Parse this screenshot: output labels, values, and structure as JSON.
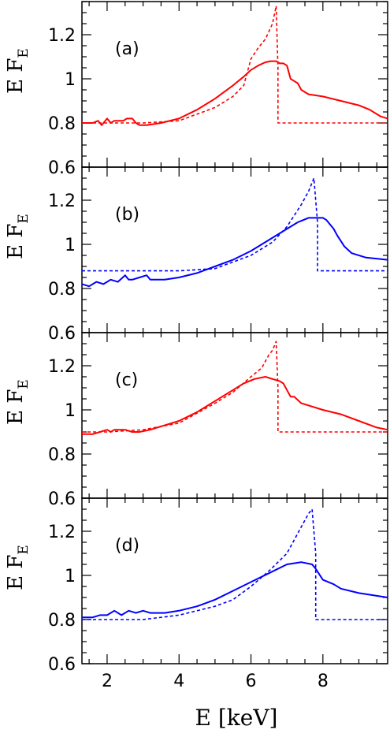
{
  "chart_data": [
    {
      "type": "line",
      "panel": "(a)",
      "xlabel": "E [keV]",
      "ylabel": "E F",
      "ylabel_sub": "E",
      "xlim": [
        1.3,
        9.8
      ],
      "ylim": [
        0.6,
        1.35
      ],
      "xticks": [
        2,
        4,
        6,
        8
      ],
      "yticks": [
        0.6,
        0.8,
        1,
        1.2
      ],
      "ytick_labels": [
        "0.6",
        "0.8",
        "1",
        "1.2"
      ],
      "series": [
        {
          "style": "solid",
          "color": "#ff0000",
          "x": [
            1.3,
            1.6,
            1.75,
            1.85,
            2.0,
            2.1,
            2.2,
            2.3,
            2.45,
            2.55,
            2.7,
            2.8,
            2.9,
            3.1,
            3.5,
            4.0,
            4.5,
            5.0,
            5.5,
            5.8,
            6.0,
            6.2,
            6.4,
            6.55,
            6.7,
            6.8,
            6.9,
            7.0,
            7.1,
            7.2,
            7.3,
            7.4,
            7.6,
            8.0,
            8.5,
            9.0,
            9.3,
            9.6,
            9.8
          ],
          "y": [
            0.8,
            0.8,
            0.81,
            0.79,
            0.82,
            0.8,
            0.81,
            0.81,
            0.81,
            0.82,
            0.82,
            0.8,
            0.79,
            0.79,
            0.8,
            0.82,
            0.86,
            0.91,
            0.97,
            1.01,
            1.04,
            1.06,
            1.075,
            1.08,
            1.08,
            1.07,
            1.07,
            1.06,
            1.0,
            0.99,
            0.98,
            0.95,
            0.93,
            0.92,
            0.9,
            0.88,
            0.86,
            0.83,
            0.82
          ]
        },
        {
          "style": "dashed",
          "color": "#ff0000",
          "x": [
            1.3,
            2.0,
            3.0,
            4.0,
            5.0,
            5.5,
            5.8,
            6.0,
            6.2,
            6.4,
            6.6,
            6.7,
            6.75,
            6.75,
            9.8
          ],
          "y": [
            0.8,
            0.8,
            0.8,
            0.81,
            0.87,
            0.92,
            0.97,
            1.09,
            1.14,
            1.18,
            1.25,
            1.33,
            1.05,
            0.8,
            0.8
          ]
        }
      ]
    },
    {
      "type": "line",
      "panel": "(b)",
      "xlabel": "E [keV]",
      "ylabel": "E F",
      "ylabel_sub": "E",
      "xlim": [
        1.3,
        9.8
      ],
      "ylim": [
        0.6,
        1.35
      ],
      "xticks": [
        2,
        4,
        6,
        8
      ],
      "yticks": [
        0.6,
        0.8,
        1,
        1.2
      ],
      "ytick_labels": [
        "0.6",
        "0.8",
        "1",
        "1.2"
      ],
      "series": [
        {
          "style": "solid",
          "color": "#0000ff",
          "x": [
            1.3,
            1.5,
            1.7,
            1.9,
            2.1,
            2.3,
            2.5,
            2.6,
            2.7,
            2.9,
            3.1,
            3.2,
            3.3,
            3.6,
            4.0,
            4.5,
            5.0,
            5.5,
            6.0,
            6.5,
            7.0,
            7.3,
            7.6,
            7.8,
            8.0,
            8.1,
            8.3,
            8.4,
            8.6,
            8.8,
            9.2,
            9.8
          ],
          "y": [
            0.82,
            0.81,
            0.83,
            0.82,
            0.84,
            0.83,
            0.86,
            0.84,
            0.84,
            0.85,
            0.86,
            0.84,
            0.84,
            0.84,
            0.85,
            0.87,
            0.9,
            0.93,
            0.97,
            1.02,
            1.07,
            1.1,
            1.12,
            1.12,
            1.12,
            1.11,
            1.07,
            1.04,
            0.99,
            0.96,
            0.94,
            0.93
          ]
        },
        {
          "style": "dashed",
          "color": "#0000ff",
          "x": [
            1.3,
            3.0,
            4.0,
            5.0,
            6.0,
            6.6,
            7.0,
            7.2,
            7.4,
            7.6,
            7.75,
            7.85,
            7.85,
            9.8
          ],
          "y": [
            0.88,
            0.88,
            0.88,
            0.89,
            0.95,
            1.01,
            1.08,
            1.13,
            1.18,
            1.24,
            1.3,
            1.1,
            0.88,
            0.88
          ]
        }
      ]
    },
    {
      "type": "line",
      "panel": "(c)",
      "xlabel": "E [keV]",
      "ylabel": "E F",
      "ylabel_sub": "E",
      "xlim": [
        1.3,
        9.8
      ],
      "ylim": [
        0.6,
        1.35
      ],
      "xticks": [
        2,
        4,
        6,
        8
      ],
      "yticks": [
        0.6,
        0.8,
        1,
        1.2
      ],
      "ytick_labels": [
        "0.6",
        "0.8",
        "1",
        "1.2"
      ],
      "series": [
        {
          "style": "solid",
          "color": "#ff0000",
          "x": [
            1.3,
            1.6,
            1.8,
            2.0,
            2.1,
            2.2,
            2.4,
            2.5,
            2.7,
            2.9,
            3.2,
            3.6,
            4.0,
            4.5,
            5.0,
            5.5,
            5.8,
            6.1,
            6.4,
            6.6,
            6.8,
            6.9,
            7.0,
            7.1,
            7.2,
            7.4,
            8.0,
            8.5,
            9.0,
            9.5,
            9.8
          ],
          "y": [
            0.89,
            0.89,
            0.9,
            0.91,
            0.9,
            0.91,
            0.91,
            0.91,
            0.9,
            0.9,
            0.91,
            0.93,
            0.95,
            0.99,
            1.04,
            1.09,
            1.12,
            1.14,
            1.15,
            1.14,
            1.13,
            1.12,
            1.09,
            1.06,
            1.06,
            1.03,
            1.0,
            0.98,
            0.95,
            0.92,
            0.91
          ]
        },
        {
          "style": "dashed",
          "color": "#ff0000",
          "x": [
            1.3,
            2.0,
            3.0,
            4.0,
            5.0,
            5.5,
            6.0,
            6.3,
            6.5,
            6.6,
            6.7,
            6.75,
            6.75,
            9.8
          ],
          "y": [
            0.9,
            0.9,
            0.91,
            0.94,
            1.03,
            1.08,
            1.15,
            1.19,
            1.25,
            1.27,
            1.31,
            1.1,
            0.9,
            0.9
          ]
        }
      ]
    },
    {
      "type": "line",
      "panel": "(d)",
      "xlabel": "E [keV]",
      "ylabel": "E F",
      "ylabel_sub": "E",
      "xlim": [
        1.3,
        9.8
      ],
      "ylim": [
        0.6,
        1.35
      ],
      "xticks": [
        2,
        4,
        6,
        8
      ],
      "yticks": [
        0.6,
        0.8,
        1,
        1.2
      ],
      "ytick_labels": [
        "0.6",
        "0.8",
        "1",
        "1.2"
      ],
      "series": [
        {
          "style": "solid",
          "color": "#0000ff",
          "x": [
            1.3,
            1.6,
            1.8,
            2.0,
            2.2,
            2.4,
            2.6,
            2.8,
            3.0,
            3.2,
            3.6,
            4.0,
            4.5,
            5.0,
            5.5,
            6.0,
            6.5,
            7.0,
            7.4,
            7.7,
            7.8,
            8.0,
            8.3,
            8.5,
            9.0,
            9.8
          ],
          "y": [
            0.81,
            0.81,
            0.82,
            0.82,
            0.84,
            0.82,
            0.84,
            0.83,
            0.84,
            0.83,
            0.83,
            0.84,
            0.86,
            0.89,
            0.93,
            0.97,
            1.01,
            1.05,
            1.06,
            1.05,
            1.03,
            0.98,
            0.96,
            0.94,
            0.92,
            0.9
          ]
        },
        {
          "style": "dashed",
          "color": "#0000ff",
          "x": [
            1.3,
            2.0,
            3.0,
            4.0,
            5.0,
            5.5,
            6.0,
            6.5,
            7.0,
            7.2,
            7.4,
            7.6,
            7.7,
            7.8,
            7.8,
            9.8
          ],
          "y": [
            0.8,
            0.8,
            0.8,
            0.82,
            0.86,
            0.89,
            0.95,
            1.02,
            1.1,
            1.16,
            1.22,
            1.28,
            1.3,
            1.1,
            0.8,
            0.8
          ]
        }
      ]
    }
  ]
}
